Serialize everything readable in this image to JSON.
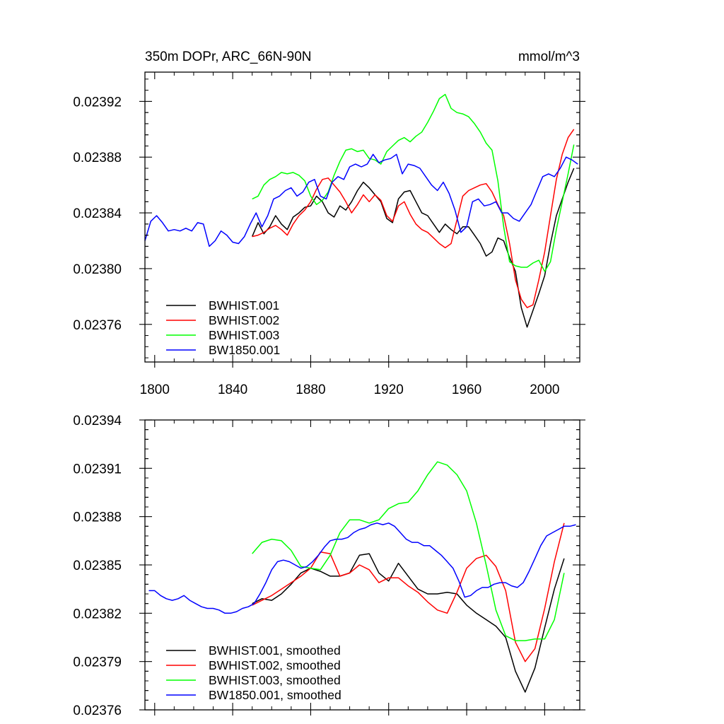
{
  "chart_data": [
    {
      "type": "line",
      "title_left": "350m DOPr, ARC_66N-90N",
      "title_right": "mmol/m^3",
      "xlabel": "",
      "ylabel": "",
      "xlim": [
        1795,
        2018
      ],
      "ylim": [
        0.023733,
        0.023941
      ],
      "x_ticks": [
        1800,
        1840,
        1880,
        1920,
        1960,
        2000
      ],
      "x_tick_labels": [
        "1800",
        "1840",
        "1880",
        "1920",
        "1960",
        "2000"
      ],
      "y_ticks": [
        0.02376,
        0.0238,
        0.02384,
        0.02388,
        0.02392
      ],
      "y_tick_labels": [
        "0.02376",
        "0.02380",
        "0.02384",
        "0.02388",
        "0.02392"
      ],
      "legend_position": "bottom-left",
      "series": [
        {
          "name": "BWHIST.001",
          "color": "#000000",
          "x": [
            1850,
            1853,
            1856,
            1859,
            1862,
            1865,
            1868,
            1871,
            1874,
            1877,
            1880,
            1883,
            1886,
            1889,
            1892,
            1895,
            1898,
            1901,
            1904,
            1907,
            1910,
            1913,
            1916,
            1919,
            1922,
            1925,
            1928,
            1931,
            1934,
            1937,
            1940,
            1943,
            1946,
            1949,
            1952,
            1955,
            1958,
            1961,
            1964,
            1967,
            1970,
            1973,
            1976,
            1979,
            1982,
            1985,
            1988,
            1991,
            1994,
            1997,
            2000,
            2003,
            2006,
            2009,
            2012,
            2015
          ],
          "y": [
            0.023823,
            0.023833,
            0.023825,
            0.02383,
            0.023838,
            0.023832,
            0.023828,
            0.023837,
            0.02384,
            0.023844,
            0.023845,
            0.023852,
            0.023848,
            0.02384,
            0.023837,
            0.023845,
            0.023842,
            0.023848,
            0.023856,
            0.023862,
            0.023858,
            0.023853,
            0.023848,
            0.023836,
            0.023833,
            0.02385,
            0.023855,
            0.023856,
            0.023848,
            0.02384,
            0.023838,
            0.023832,
            0.023826,
            0.023832,
            0.023828,
            0.023825,
            0.02383,
            0.02383,
            0.023824,
            0.023818,
            0.023809,
            0.023812,
            0.023822,
            0.02382,
            0.023808,
            0.023798,
            0.023772,
            0.023758,
            0.02377,
            0.023782,
            0.023795,
            0.023818,
            0.023838,
            0.02385,
            0.023862,
            0.023872
          ]
        },
        {
          "name": "BWHIST.002",
          "color": "#ff0000",
          "x": [
            1850,
            1853,
            1856,
            1859,
            1862,
            1865,
            1868,
            1871,
            1874,
            1877,
            1880,
            1883,
            1886,
            1889,
            1892,
            1895,
            1898,
            1901,
            1904,
            1907,
            1910,
            1913,
            1916,
            1919,
            1922,
            1925,
            1928,
            1931,
            1934,
            1937,
            1940,
            1943,
            1946,
            1949,
            1952,
            1955,
            1958,
            1961,
            1964,
            1967,
            1970,
            1973,
            1976,
            1979,
            1982,
            1985,
            1988,
            1991,
            1994,
            1997,
            2000,
            2003,
            2006,
            2009,
            2012,
            2015
          ],
          "y": [
            0.023823,
            0.023824,
            0.023826,
            0.023829,
            0.023831,
            0.023828,
            0.023824,
            0.023832,
            0.023838,
            0.023842,
            0.023848,
            0.023857,
            0.023864,
            0.023865,
            0.02386,
            0.023855,
            0.023848,
            0.02384,
            0.023846,
            0.023853,
            0.023848,
            0.023853,
            0.023849,
            0.023838,
            0.023834,
            0.023845,
            0.023848,
            0.023839,
            0.023832,
            0.023828,
            0.023826,
            0.023822,
            0.023818,
            0.023815,
            0.023818,
            0.023835,
            0.023852,
            0.023856,
            0.023858,
            0.02386,
            0.023861,
            0.023855,
            0.023846,
            0.023838,
            0.023818,
            0.023792,
            0.023778,
            0.023772,
            0.023774,
            0.023792,
            0.023812,
            0.023838,
            0.023864,
            0.023882,
            0.023894,
            0.0239
          ]
        },
        {
          "name": "BWHIST.003",
          "color": "#00ff00",
          "x": [
            1850,
            1853,
            1856,
            1859,
            1862,
            1865,
            1868,
            1871,
            1874,
            1877,
            1880,
            1883,
            1886,
            1889,
            1892,
            1895,
            1898,
            1901,
            1904,
            1907,
            1910,
            1913,
            1916,
            1919,
            1922,
            1925,
            1928,
            1931,
            1934,
            1937,
            1940,
            1943,
            1946,
            1949,
            1952,
            1955,
            1958,
            1961,
            1964,
            1967,
            1970,
            1973,
            1976,
            1979,
            1982,
            1985,
            1988,
            1991,
            1994,
            1997,
            2000,
            2003,
            2006,
            2009,
            2012,
            2015
          ],
          "y": [
            0.02385,
            0.023852,
            0.02386,
            0.023864,
            0.023866,
            0.023869,
            0.023868,
            0.023869,
            0.023867,
            0.023863,
            0.023852,
            0.023846,
            0.023849,
            0.023855,
            0.023867,
            0.023877,
            0.023885,
            0.023886,
            0.023884,
            0.023885,
            0.023879,
            0.023878,
            0.023875,
            0.023884,
            0.023888,
            0.023892,
            0.023894,
            0.023891,
            0.023895,
            0.023898,
            0.023905,
            0.023913,
            0.023922,
            0.023925,
            0.023915,
            0.023912,
            0.023911,
            0.023909,
            0.023904,
            0.023898,
            0.02389,
            0.023885,
            0.023863,
            0.02383,
            0.023805,
            0.023802,
            0.023801,
            0.023801,
            0.023804,
            0.023806,
            0.023798,
            0.023805,
            0.023828,
            0.023848,
            0.023868,
            0.023889
          ]
        },
        {
          "name": "BW1850.001",
          "color": "#0000ff",
          "x": [
            1795,
            1798,
            1801,
            1804,
            1807,
            1810,
            1813,
            1816,
            1819,
            1822,
            1825,
            1828,
            1831,
            1834,
            1837,
            1840,
            1843,
            1846,
            1849,
            1852,
            1855,
            1858,
            1861,
            1864,
            1867,
            1870,
            1873,
            1876,
            1879,
            1882,
            1885,
            1888,
            1891,
            1894,
            1897,
            1900,
            1903,
            1906,
            1909,
            1912,
            1915,
            1918,
            1921,
            1924,
            1927,
            1930,
            1933,
            1936,
            1939,
            1942,
            1945,
            1948,
            1951,
            1954,
            1957,
            1960,
            1963,
            1966,
            1969,
            1972,
            1975,
            1978,
            1981,
            1984,
            1987,
            1990,
            1993,
            1996,
            1999,
            2002,
            2005,
            2008,
            2011,
            2014,
            2017
          ],
          "y": [
            0.02382,
            0.023834,
            0.023838,
            0.023833,
            0.023827,
            0.023828,
            0.023827,
            0.023829,
            0.023827,
            0.023833,
            0.023832,
            0.023816,
            0.02382,
            0.023827,
            0.023824,
            0.023819,
            0.023818,
            0.023823,
            0.023832,
            0.02384,
            0.02383,
            0.023838,
            0.02385,
            0.023852,
            0.023856,
            0.023858,
            0.023852,
            0.023855,
            0.023862,
            0.023864,
            0.023852,
            0.02385,
            0.023862,
            0.023866,
            0.023864,
            0.023873,
            0.023875,
            0.023873,
            0.023875,
            0.023882,
            0.023876,
            0.023878,
            0.023879,
            0.023882,
            0.023868,
            0.023875,
            0.023874,
            0.023872,
            0.023866,
            0.02386,
            0.023856,
            0.023862,
            0.023854,
            0.023842,
            0.023826,
            0.02383,
            0.023848,
            0.02385,
            0.023845,
            0.023846,
            0.023848,
            0.02384,
            0.02384,
            0.023836,
            0.023834,
            0.02384,
            0.023846,
            0.023856,
            0.023866,
            0.023868,
            0.023866,
            0.023872,
            0.02388,
            0.023878,
            0.023875
          ]
        }
      ]
    },
    {
      "type": "line",
      "xlabel": "",
      "ylabel": "",
      "xlim": [
        1795,
        2018
      ],
      "ylim": [
        0.02376,
        0.02394
      ],
      "x_ticks": [
        1800,
        1840,
        1880,
        1920,
        1960,
        2000
      ],
      "x_tick_labels": [],
      "y_ticks": [
        0.02376,
        0.02379,
        0.02382,
        0.02385,
        0.02388,
        0.02391,
        0.02394
      ],
      "y_tick_labels": [
        "0.02376",
        "0.02379",
        "0.02382",
        "0.02385",
        "0.02388",
        "0.02391",
        "0.02394"
      ],
      "legend_position": "bottom-left",
      "series": [
        {
          "name": "BWHIST.001, smoothed",
          "color": "#000000",
          "x": [
            1850,
            1855,
            1860,
            1865,
            1870,
            1875,
            1880,
            1885,
            1890,
            1895,
            1900,
            1905,
            1910,
            1915,
            1920,
            1925,
            1930,
            1935,
            1940,
            1945,
            1950,
            1955,
            1960,
            1965,
            1970,
            1975,
            1980,
            1985,
            1990,
            1995,
            2000,
            2005,
            2010
          ],
          "y": [
            0.023826,
            0.023829,
            0.023828,
            0.023832,
            0.023838,
            0.023845,
            0.023848,
            0.023846,
            0.023843,
            0.023843,
            0.023845,
            0.023856,
            0.023857,
            0.023845,
            0.02384,
            0.023851,
            0.023843,
            0.023835,
            0.023832,
            0.023832,
            0.023833,
            0.023832,
            0.023825,
            0.02382,
            0.023816,
            0.023812,
            0.023805,
            0.023784,
            0.023771,
            0.023786,
            0.023811,
            0.023835,
            0.023854
          ]
        },
        {
          "name": "BWHIST.002, smoothed",
          "color": "#ff0000",
          "x": [
            1850,
            1855,
            1860,
            1865,
            1870,
            1875,
            1880,
            1885,
            1890,
            1895,
            1900,
            1905,
            1910,
            1915,
            1920,
            1925,
            1930,
            1935,
            1940,
            1945,
            1950,
            1955,
            1960,
            1965,
            1970,
            1975,
            1980,
            1985,
            1990,
            1995,
            2000,
            2005,
            2010
          ],
          "y": [
            0.023825,
            0.023828,
            0.023831,
            0.023835,
            0.023839,
            0.023843,
            0.023848,
            0.023858,
            0.023857,
            0.023843,
            0.023845,
            0.02385,
            0.023847,
            0.023839,
            0.023842,
            0.023842,
            0.023837,
            0.023833,
            0.023827,
            0.023822,
            0.02382,
            0.023833,
            0.023848,
            0.023854,
            0.023856,
            0.023849,
            0.023834,
            0.023802,
            0.02379,
            0.023798,
            0.023823,
            0.023852,
            0.023876
          ]
        },
        {
          "name": "BWHIST.003, smoothed",
          "color": "#00ff00",
          "x": [
            1850,
            1855,
            1860,
            1865,
            1870,
            1875,
            1880,
            1885,
            1890,
            1895,
            1900,
            1905,
            1910,
            1915,
            1920,
            1925,
            1930,
            1935,
            1940,
            1945,
            1950,
            1955,
            1960,
            1965,
            1970,
            1975,
            1980,
            1985,
            1990,
            1995,
            2000,
            2005,
            2010
          ],
          "y": [
            0.023857,
            0.023864,
            0.023866,
            0.023865,
            0.023859,
            0.023849,
            0.023848,
            0.023847,
            0.023856,
            0.02387,
            0.023878,
            0.023878,
            0.023876,
            0.023878,
            0.023885,
            0.023888,
            0.023889,
            0.023896,
            0.023906,
            0.023914,
            0.023912,
            0.023906,
            0.023896,
            0.023876,
            0.02385,
            0.023822,
            0.023806,
            0.023803,
            0.023803,
            0.023804,
            0.023804,
            0.023816,
            0.023845
          ]
        },
        {
          "name": "BW1850.001, smoothed",
          "color": "#0000ff",
          "x": [
            1797,
            1800,
            1803,
            1806,
            1809,
            1812,
            1815,
            1818,
            1821,
            1824,
            1827,
            1830,
            1833,
            1836,
            1839,
            1842,
            1845,
            1848,
            1851,
            1854,
            1857,
            1860,
            1863,
            1866,
            1869,
            1872,
            1875,
            1878,
            1881,
            1884,
            1887,
            1890,
            1893,
            1896,
            1899,
            1902,
            1905,
            1908,
            1911,
            1914,
            1917,
            1920,
            1923,
            1926,
            1929,
            1932,
            1935,
            1938,
            1941,
            1944,
            1947,
            1950,
            1953,
            1956,
            1959,
            1962,
            1965,
            1968,
            1971,
            1974,
            1977,
            1980,
            1983,
            1986,
            1989,
            1992,
            1995,
            1998,
            2001,
            2004,
            2007,
            2010,
            2013,
            2016
          ],
          "y": [
            0.023834,
            0.023834,
            0.023831,
            0.023829,
            0.023828,
            0.023829,
            0.023831,
            0.023828,
            0.023826,
            0.023824,
            0.023823,
            0.023823,
            0.023822,
            0.02382,
            0.02382,
            0.023821,
            0.023823,
            0.023824,
            0.023826,
            0.023832,
            0.023839,
            0.023847,
            0.023852,
            0.023853,
            0.023852,
            0.02385,
            0.023848,
            0.023849,
            0.023852,
            0.023856,
            0.023861,
            0.023865,
            0.023866,
            0.023866,
            0.023867,
            0.02387,
            0.023872,
            0.023873,
            0.023875,
            0.023876,
            0.023875,
            0.023876,
            0.023874,
            0.02387,
            0.023866,
            0.023864,
            0.023864,
            0.023862,
            0.023862,
            0.023859,
            0.023856,
            0.023852,
            0.023848,
            0.02384,
            0.02383,
            0.023831,
            0.023834,
            0.023836,
            0.023836,
            0.023838,
            0.023839,
            0.023839,
            0.023837,
            0.023836,
            0.023839,
            0.023846,
            0.023854,
            0.023862,
            0.023868,
            0.02387,
            0.023872,
            0.023874,
            0.023874,
            0.023875
          ]
        }
      ]
    }
  ]
}
